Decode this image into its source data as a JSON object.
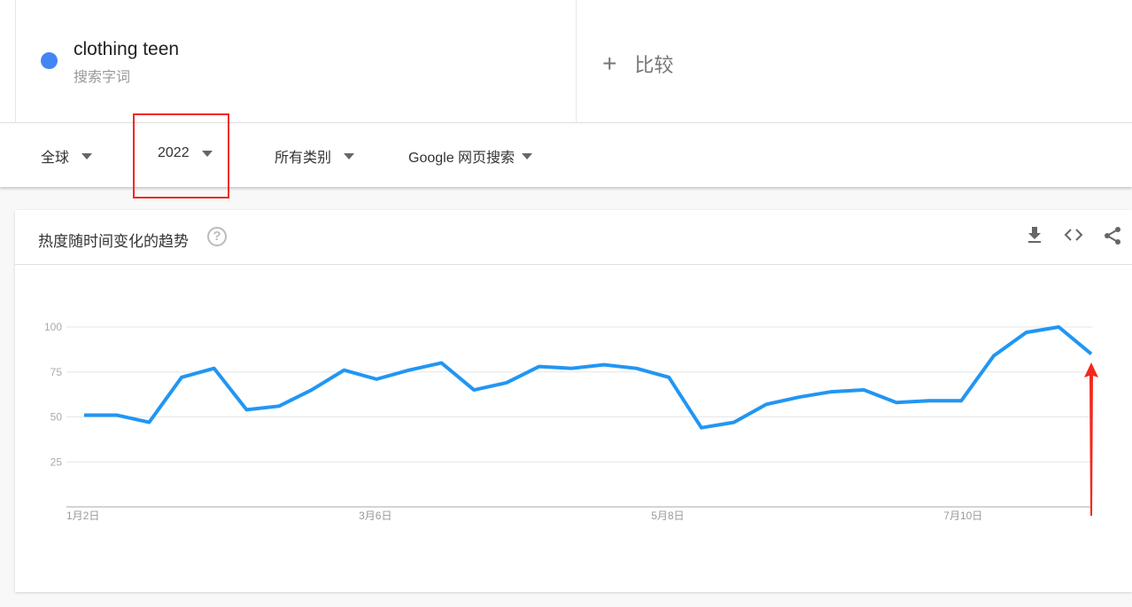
{
  "search_term": {
    "name": "clothing teen",
    "type": "搜索字词",
    "color": "#4285f4"
  },
  "compare": {
    "icon": "plus-icon",
    "label": "比较"
  },
  "filters": [
    {
      "label": "全球"
    },
    {
      "label": "2022"
    },
    {
      "label": "所有类别"
    },
    {
      "label": "Google 网页搜索"
    }
  ],
  "card": {
    "title": "热度随时间变化的趋势",
    "help": "?",
    "icons": [
      "download-icon",
      "embed-code-icon",
      "share-icon"
    ]
  },
  "chart_data": {
    "type": "line",
    "x": [
      "1月2日",
      "1月9日",
      "1月16日",
      "1月23日",
      "1月30日",
      "2月6日",
      "2月13日",
      "2月20日",
      "2月27日",
      "3月6日",
      "3月13日",
      "3月20日",
      "3月27日",
      "4月3日",
      "4月10日",
      "4月17日",
      "4月24日",
      "5月1日",
      "5月8日",
      "5月15日",
      "5月22日",
      "5月29日",
      "6月5日",
      "6月12日",
      "6月19日",
      "6月26日",
      "7月3日",
      "7月10日",
      "7月17日",
      "7月24日",
      "7月31日",
      "8月7日"
    ],
    "xticks": [
      "1月2日",
      "3月6日",
      "5月8日",
      "7月10日"
    ],
    "yticks": [
      25,
      50,
      75,
      100
    ],
    "ylim": [
      0,
      100
    ],
    "grid": true,
    "series": [
      {
        "values": [
          51,
          51,
          47,
          72,
          77,
          54,
          56,
          65,
          76,
          71,
          76,
          80,
          65,
          69,
          78,
          77,
          79,
          77,
          72,
          44,
          47,
          57,
          61,
          64,
          65,
          58,
          59,
          59,
          84,
          97,
          100,
          85
        ],
        "color": "#2196f3"
      }
    ],
    "annotation": {
      "type": "arrow",
      "color": "#f3281d",
      "target": "8月7日"
    }
  }
}
